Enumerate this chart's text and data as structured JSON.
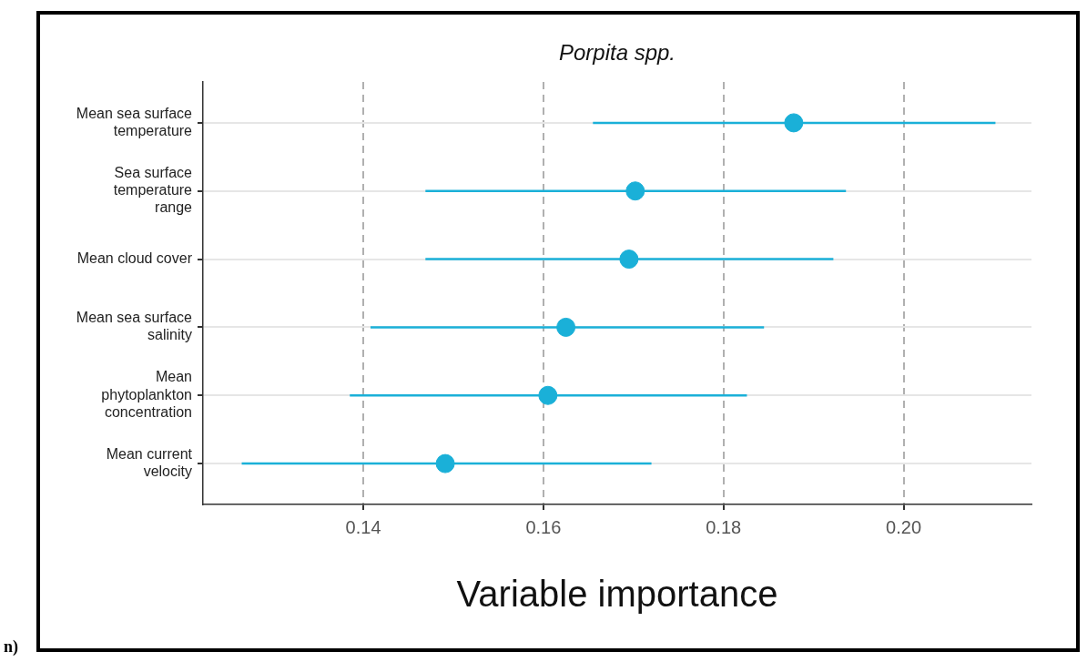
{
  "chart_data": {
    "type": "scatter",
    "title": "Porpita spp.",
    "xlabel": "Variable importance",
    "orientation": "horizontal",
    "categories": [
      "Mean sea surface temperature",
      "Sea surface temperature range",
      "Mean cloud cover",
      "Mean sea surface salinity",
      "Mean phytoplankton concentration",
      "Mean current velocity"
    ],
    "series": [
      {
        "color": "#1ab0d8",
        "values": [
          0.1878,
          0.1702,
          0.1695,
          0.1625,
          0.1605,
          0.1491
        ],
        "errors": [
          [
            0.1655,
            0.2102
          ],
          [
            0.1469,
            0.1936
          ],
          [
            0.1469,
            0.1922
          ],
          [
            0.1408,
            0.1845
          ],
          [
            0.1385,
            0.1826
          ],
          [
            0.1265,
            0.172
          ]
        ]
      }
    ],
    "xlim": [
      0.1222,
      0.2142
    ],
    "xticks": [
      {
        "value": 0.14,
        "label": "0.14"
      },
      {
        "value": 0.16,
        "label": "0.16"
      },
      {
        "value": 0.18,
        "label": "0.18"
      },
      {
        "value": 0.2,
        "label": "0.20"
      }
    ],
    "grid": true,
    "legend": false,
    "marker": "circle",
    "annotations": [
      "n)"
    ]
  }
}
